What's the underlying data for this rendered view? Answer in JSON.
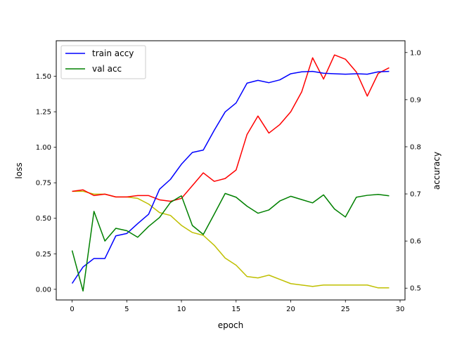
{
  "chart_data": {
    "type": "line",
    "xlabel": "epoch",
    "ylabel_left": "loss",
    "ylabel_right": "accuracy",
    "xlim": [
      -1.45,
      30.45
    ],
    "ylim_left": [
      -0.075,
      1.75
    ],
    "ylim_right": [
      0.475,
      1.025
    ],
    "x_ticks": [
      0,
      5,
      10,
      15,
      20,
      25,
      30
    ],
    "y_left_ticks": [
      0.0,
      0.25,
      0.5,
      0.75,
      1.0,
      1.25,
      1.5
    ],
    "y_left_tick_labels": [
      "0.00",
      "0.25",
      "0.50",
      "0.75",
      "1.00",
      "1.25",
      "1.50"
    ],
    "y_right_ticks": [
      0.5,
      0.6,
      0.7,
      0.8,
      0.9,
      1.0
    ],
    "y_right_tick_labels": [
      "0.5",
      "0.6",
      "0.7",
      "0.8",
      "0.9",
      "1.0"
    ],
    "legend_position": "top-left",
    "x": [
      0,
      1,
      2,
      3,
      4,
      5,
      6,
      7,
      8,
      9,
      10,
      11,
      12,
      13,
      14,
      15,
      16,
      17,
      18,
      19,
      20,
      21,
      22,
      23,
      24,
      25,
      26,
      27,
      28,
      29
    ],
    "series": [
      {
        "name": "",
        "axis": "left",
        "color": "#bfbf00",
        "values": [
          0.69,
          0.69,
          0.67,
          0.67,
          0.65,
          0.65,
          0.64,
          0.6,
          0.54,
          0.52,
          0.45,
          0.4,
          0.38,
          0.31,
          0.22,
          0.17,
          0.09,
          0.08,
          0.1,
          0.07,
          0.04,
          0.03,
          0.02,
          0.03,
          0.03,
          0.03,
          0.03,
          0.03,
          0.01,
          0.01
        ]
      },
      {
        "name": "",
        "axis": "left",
        "color": "#ff0000",
        "values": [
          0.69,
          0.7,
          0.66,
          0.67,
          0.65,
          0.65,
          0.66,
          0.66,
          0.63,
          0.62,
          0.64,
          0.73,
          0.82,
          0.76,
          0.78,
          0.84,
          1.09,
          1.22,
          1.1,
          1.16,
          1.25,
          1.39,
          1.63,
          1.48,
          1.65,
          1.62,
          1.53,
          1.36,
          1.52,
          1.56
        ]
      },
      {
        "name": "train accy",
        "axis": "right",
        "color": "#0000ff",
        "values": [
          0.51,
          0.545,
          0.563,
          0.563,
          0.611,
          0.616,
          0.637,
          0.657,
          0.71,
          0.731,
          0.763,
          0.788,
          0.793,
          0.835,
          0.874,
          0.893,
          0.935,
          0.941,
          0.936,
          0.942,
          0.955,
          0.959,
          0.96,
          0.956,
          0.955,
          0.954,
          0.955,
          0.954,
          0.959,
          0.96
        ]
      },
      {
        "name": "val acc",
        "axis": "right",
        "color": "#008000",
        "values": [
          0.58,
          0.494,
          0.663,
          0.6,
          0.627,
          0.622,
          0.608,
          0.631,
          0.65,
          0.682,
          0.696,
          0.633,
          0.614,
          0.657,
          0.701,
          0.693,
          0.674,
          0.659,
          0.666,
          0.685,
          0.695,
          0.688,
          0.681,
          0.698,
          0.668,
          0.651,
          0.693,
          0.697,
          0.699,
          0.696
        ]
      }
    ]
  }
}
